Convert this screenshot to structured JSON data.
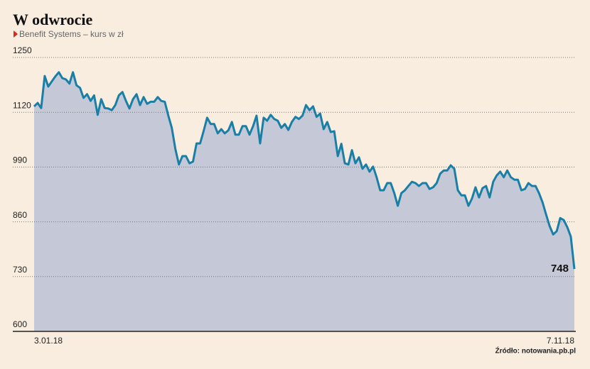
{
  "chart_data": {
    "type": "area",
    "title": "W odwrocie",
    "subtitle": "Benefit Systems – kurs w zł",
    "source": "Źródło: notowania.pb.pl",
    "categories": [
      "3.01.18",
      null,
      null,
      null,
      null,
      null,
      null,
      null,
      null,
      null,
      null,
      null,
      null,
      null,
      null,
      null,
      null,
      null,
      null,
      null,
      null,
      null,
      null,
      null,
      null,
      null,
      null,
      null,
      null,
      null,
      null,
      null,
      null,
      null,
      null,
      null,
      null,
      null,
      null,
      null,
      null,
      null,
      null,
      null,
      null,
      null,
      null,
      null,
      null,
      null,
      null,
      null,
      null,
      null,
      null,
      null,
      null,
      null,
      null,
      null,
      null,
      null,
      null,
      null,
      null,
      null,
      null,
      null,
      null,
      null,
      null,
      null,
      null,
      null,
      null,
      null,
      null,
      null,
      null,
      null,
      null,
      null,
      null,
      null,
      null,
      null,
      null,
      null,
      null,
      null,
      null,
      null,
      null,
      null,
      null,
      null,
      null,
      null,
      null,
      null,
      null,
      null,
      null,
      null,
      null,
      null,
      null,
      null,
      null,
      null,
      null,
      null,
      null,
      null,
      null,
      null,
      null,
      null,
      null,
      null,
      null,
      null,
      null,
      null,
      null,
      null,
      null,
      null,
      null,
      null,
      null,
      null,
      null,
      null,
      null,
      null,
      null,
      null,
      null,
      null,
      null,
      null,
      null,
      null,
      null,
      null,
      null,
      null,
      null,
      null,
      null,
      null,
      null,
      "7.11.18"
    ],
    "values": [
      1134,
      1142,
      1130,
      1206,
      1181,
      1193,
      1205,
      1215,
      1201,
      1198,
      1188,
      1215,
      1184,
      1178,
      1154,
      1163,
      1147,
      1160,
      1114,
      1151,
      1130,
      1129,
      1125,
      1137,
      1160,
      1168,
      1147,
      1129,
      1151,
      1163,
      1137,
      1156,
      1140,
      1145,
      1145,
      1156,
      1147,
      1145,
      1112,
      1083,
      1033,
      996,
      1016,
      1016,
      999,
      1003,
      1046,
      1046,
      1075,
      1107,
      1092,
      1092,
      1070,
      1080,
      1070,
      1077,
      1097,
      1067,
      1067,
      1087,
      1087,
      1067,
      1087,
      1112,
      1046,
      1107,
      1100,
      1114,
      1104,
      1100,
      1083,
      1092,
      1078,
      1097,
      1109,
      1104,
      1112,
      1137,
      1125,
      1134,
      1109,
      1117,
      1080,
      1097,
      1073,
      1075,
      1016,
      1045,
      999,
      996,
      1030,
      999,
      1013,
      986,
      996,
      979,
      991,
      966,
      935,
      935,
      952,
      952,
      928,
      898,
      928,
      935,
      945,
      955,
      952,
      945,
      952,
      952,
      938,
      942,
      952,
      974,
      982,
      982,
      994,
      986,
      935,
      923,
      923,
      898,
      915,
      942,
      918,
      940,
      945,
      918,
      955,
      970,
      979,
      966,
      982,
      966,
      960,
      960,
      935,
      938,
      952,
      945,
      945,
      928,
      906,
      877,
      850,
      830,
      838,
      869,
      864,
      847,
      825,
      748
    ],
    "color": "#1a7fa6",
    "fill_color": "#c5c8d6",
    "ylim": [
      600,
      1250
    ],
    "yticks": [
      600,
      730,
      860,
      990,
      1120,
      1250
    ],
    "grid": true
  }
}
